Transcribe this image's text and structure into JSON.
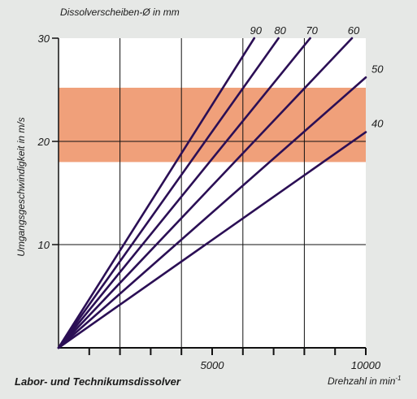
{
  "chart_data": {
    "type": "line",
    "title": "Labor- und Technikumsdissolver",
    "legend_title": "Dissolverscheiben-Ø in mm",
    "xlabel": "Drehzahl in min",
    "xlabel_superscript": "-1",
    "ylabel": "Umgangsgeschwindigkeit in m/s",
    "xlim": [
      0,
      10000
    ],
    "ylim": [
      0,
      30
    ],
    "x_tick_labels": [
      {
        "value": 5000,
        "label": "5000"
      },
      {
        "value": 10000,
        "label": "10000"
      }
    ],
    "x_minor_ticks": [
      1000,
      2000,
      3000,
      4000,
      5000,
      6000,
      7000,
      8000,
      9000,
      10000
    ],
    "x_grid": [
      2000,
      4000,
      6000,
      8000
    ],
    "y_ticks": [
      {
        "value": 10,
        "label": "10"
      },
      {
        "value": 20,
        "label": "20"
      },
      {
        "value": 30,
        "label": "30"
      }
    ],
    "y_grid": [
      10,
      20
    ],
    "highlight_band": {
      "y_from": 18,
      "y_to": 25.2,
      "color": "#f0a07a"
    },
    "line_color": "#2b0f55",
    "grid_color": "#111111",
    "background_color": "#ffffff",
    "series": [
      {
        "name": "90",
        "diameter_mm": 90,
        "points": [
          [
            0,
            0
          ],
          [
            6370,
            30
          ]
        ]
      },
      {
        "name": "80",
        "diameter_mm": 80,
        "points": [
          [
            0,
            0
          ],
          [
            7160,
            30
          ]
        ]
      },
      {
        "name": "70",
        "diameter_mm": 70,
        "points": [
          [
            0,
            0
          ],
          [
            8190,
            30
          ]
        ]
      },
      {
        "name": "60",
        "diameter_mm": 60,
        "points": [
          [
            0,
            0
          ],
          [
            9550,
            30
          ]
        ]
      },
      {
        "name": "50",
        "diameter_mm": 50,
        "points": [
          [
            0,
            0
          ],
          [
            10000,
            26.2
          ]
        ]
      },
      {
        "name": "40",
        "diameter_mm": 40,
        "points": [
          [
            0,
            0
          ],
          [
            10000,
            20.9
          ]
        ]
      }
    ]
  }
}
